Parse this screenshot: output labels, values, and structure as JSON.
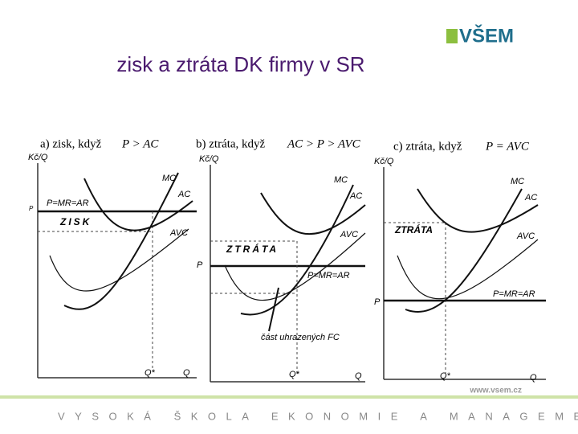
{
  "header": {
    "title": "zisk a ztráta DK firmy v SR",
    "logo": "VŠEM"
  },
  "panels": [
    {
      "caption": "a)  zisk, když",
      "condition": "P > AC",
      "y_axis": "Kč/Q",
      "x_axis": "Q",
      "q_star": "Q*",
      "p_label": "P",
      "price_label": "P=MR=AR",
      "area_label": "ZISK",
      "curves": [
        "MC",
        "AC",
        "AVC"
      ]
    },
    {
      "caption": "b)  ztráta, když",
      "condition": "AC > P > AVC",
      "y_axis": "Kč/Q",
      "x_axis": "Q",
      "q_star": "Q*",
      "p_label": "P",
      "price_label": "P=MR=AR",
      "area_label": "ZTRÁTA",
      "curves": [
        "MC",
        "AC",
        "AVC"
      ],
      "note": "část uhrazených FC"
    },
    {
      "caption": "c)  ztráta, když",
      "condition": "P = AVC",
      "y_axis": "Kč/Q",
      "x_axis": "Q",
      "q_star": "Q*",
      "p_label": "P",
      "price_label": "P=MR=AR",
      "area_label": "ZTRÁTA",
      "curves": [
        "MC",
        "AC",
        "AVC"
      ]
    }
  ],
  "footer": {
    "watermark": "www.vsem.cz",
    "school": "VYSOKÁ ŠKOLA EKONOMIE A MANAGEMENTU"
  }
}
